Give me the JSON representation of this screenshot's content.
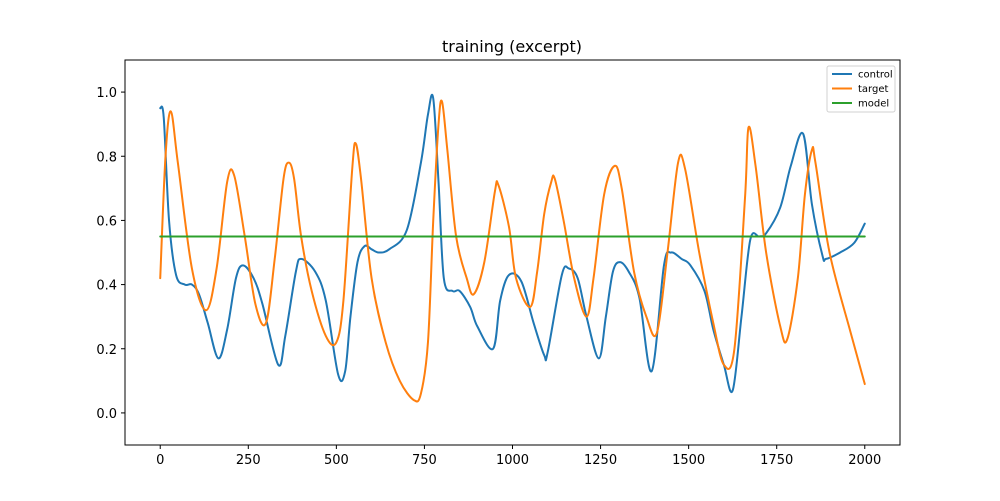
{
  "chart_data": {
    "type": "line",
    "title": "training (excerpt)",
    "xlabel": "",
    "ylabel": "",
    "xlim": [
      -100,
      2100
    ],
    "ylim": [
      -0.1,
      1.1
    ],
    "x_ticks": [
      0,
      250,
      500,
      750,
      1000,
      1250,
      1500,
      1750,
      2000
    ],
    "x_tick_labels": [
      "0",
      "250",
      "500",
      "750",
      "1000",
      "1250",
      "1500",
      "1750",
      "2000"
    ],
    "y_ticks": [
      0.0,
      0.2,
      0.4,
      0.6,
      0.8,
      1.0
    ],
    "y_tick_labels": [
      "0.0",
      "0.2",
      "0.4",
      "0.6",
      "0.8",
      "1.0"
    ],
    "grid": false,
    "legend_position": "top-right",
    "series": [
      {
        "name": "control",
        "color": "#1f77b4",
        "x": [
          0,
          10,
          25,
          45,
          70,
          90,
          110,
          135,
          165,
          190,
          215,
          235,
          265,
          290,
          335,
          355,
          385,
          400,
          440,
          470,
          505,
          525,
          540,
          560,
          580,
          600,
          620,
          650,
          700,
          740,
          760,
          775,
          790,
          805,
          830,
          850,
          880,
          900,
          945,
          965,
          990,
          1025,
          1060,
          1090,
          1100,
          1140,
          1160,
          1185,
          1210,
          1245,
          1265,
          1285,
          1305,
          1330,
          1360,
          1395,
          1430,
          1450,
          1480,
          1505,
          1545,
          1570,
          1600,
          1625,
          1650,
          1675,
          1700,
          1720,
          1760,
          1790,
          1825,
          1850,
          1880,
          1890,
          1930,
          1970,
          2000
        ],
        "y": [
          0.95,
          0.92,
          0.6,
          0.43,
          0.4,
          0.4,
          0.37,
          0.28,
          0.17,
          0.26,
          0.42,
          0.46,
          0.42,
          0.34,
          0.15,
          0.24,
          0.44,
          0.48,
          0.44,
          0.35,
          0.12,
          0.13,
          0.3,
          0.47,
          0.52,
          0.51,
          0.5,
          0.51,
          0.57,
          0.78,
          0.93,
          0.98,
          0.72,
          0.42,
          0.38,
          0.38,
          0.33,
          0.27,
          0.2,
          0.35,
          0.43,
          0.41,
          0.28,
          0.18,
          0.19,
          0.43,
          0.45,
          0.42,
          0.3,
          0.17,
          0.3,
          0.44,
          0.47,
          0.44,
          0.36,
          0.13,
          0.46,
          0.5,
          0.48,
          0.46,
          0.38,
          0.26,
          0.15,
          0.07,
          0.3,
          0.54,
          0.55,
          0.56,
          0.64,
          0.77,
          0.87,
          0.65,
          0.49,
          0.48,
          0.5,
          0.53,
          0.59
        ]
      },
      {
        "name": "target",
        "color": "#ff7f0e",
        "x": [
          0,
          15,
          30,
          50,
          90,
          130,
          160,
          190,
          210,
          240,
          270,
          300,
          325,
          350,
          365,
          380,
          400,
          430,
          470,
          500,
          520,
          545,
          555,
          570,
          600,
          640,
          680,
          720,
          740,
          760,
          775,
          790,
          800,
          815,
          840,
          870,
          890,
          920,
          950,
          960,
          990,
          1010,
          1050,
          1070,
          1090,
          1110,
          1120,
          1145,
          1175,
          1210,
          1230,
          1260,
          1290,
          1310,
          1345,
          1380,
          1410,
          1440,
          1470,
          1490,
          1530,
          1570,
          1600,
          1630,
          1660,
          1670,
          1690,
          1720,
          1760,
          1780,
          1810,
          1830,
          1850,
          1860,
          1900,
          1960,
          2000
        ],
        "y": [
          0.42,
          0.8,
          0.94,
          0.78,
          0.45,
          0.32,
          0.45,
          0.72,
          0.74,
          0.55,
          0.34,
          0.28,
          0.48,
          0.73,
          0.78,
          0.73,
          0.55,
          0.38,
          0.24,
          0.22,
          0.35,
          0.76,
          0.84,
          0.73,
          0.42,
          0.22,
          0.1,
          0.04,
          0.06,
          0.22,
          0.6,
          0.9,
          0.97,
          0.82,
          0.55,
          0.42,
          0.37,
          0.47,
          0.69,
          0.71,
          0.58,
          0.42,
          0.33,
          0.44,
          0.62,
          0.72,
          0.73,
          0.6,
          0.42,
          0.3,
          0.42,
          0.68,
          0.77,
          0.7,
          0.44,
          0.3,
          0.25,
          0.5,
          0.78,
          0.76,
          0.5,
          0.28,
          0.15,
          0.2,
          0.67,
          0.89,
          0.77,
          0.5,
          0.27,
          0.23,
          0.42,
          0.68,
          0.82,
          0.78,
          0.5,
          0.25,
          0.09
        ]
      },
      {
        "name": "model",
        "color": "#2ca02c",
        "x": [
          0,
          2000
        ],
        "y": [
          0.55,
          0.55
        ]
      }
    ]
  }
}
